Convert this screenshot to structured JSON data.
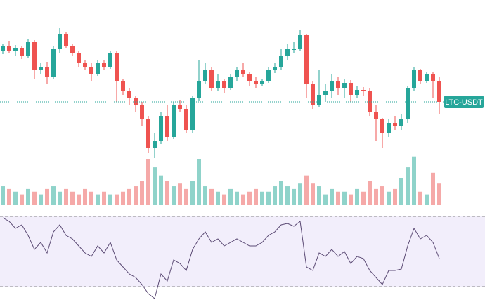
{
  "chart_data": {
    "type": "candlestick",
    "label": "LTC-USDT",
    "up_color": "#26a69a",
    "down_color": "#ef5350",
    "volume_up_color": "#8fd3ca",
    "volume_down_color": "#f5a9a8",
    "rsi_color": "#5b4a74",
    "rsi_band_color": "#f2eefb",
    "ylim": [
      0,
      220
    ],
    "volume_ylim": [
      0,
      100
    ],
    "rsi_ylim": [
      20,
      80
    ],
    "rsi_levels": [
      30,
      70
    ],
    "open": [
      168,
      175,
      168,
      172,
      160,
      180,
      140,
      145,
      130,
      170,
      192,
      175,
      165,
      150,
      145,
      135,
      150,
      145,
      165,
      125,
      110,
      100,
      90,
      70,
      30,
      40,
      75,
      45,
      90,
      85,
      55,
      100,
      125,
      140,
      115,
      125,
      115,
      130,
      140,
      135,
      125,
      120,
      125,
      140,
      145,
      160,
      170,
      170,
      190,
      120,
      90,
      105,
      110,
      125,
      115,
      122,
      105,
      112,
      110,
      80,
      70,
      50,
      65,
      60,
      70,
      115,
      140,
      125,
      135,
      125
    ],
    "high": [
      178,
      182,
      176,
      175,
      185,
      183,
      150,
      152,
      175,
      200,
      194,
      178,
      168,
      155,
      150,
      155,
      154,
      168,
      168,
      128,
      115,
      104,
      95,
      75,
      50,
      80,
      90,
      95,
      98,
      90,
      104,
      155,
      150,
      145,
      135,
      128,
      135,
      145,
      150,
      138,
      130,
      128,
      145,
      150,
      170,
      178,
      180,
      198,
      192,
      125,
      140,
      120,
      135,
      130,
      128,
      126,
      118,
      116,
      115,
      90,
      72,
      70,
      75,
      78,
      118,
      145,
      142,
      138,
      138,
      130
    ],
    "low": [
      163,
      165,
      160,
      156,
      158,
      128,
      135,
      120,
      128,
      165,
      172,
      160,
      145,
      140,
      125,
      132,
      140,
      142,
      95,
      105,
      90,
      80,
      60,
      22,
      15,
      35,
      40,
      42,
      80,
      50,
      50,
      96,
      120,
      110,
      110,
      108,
      112,
      125,
      130,
      118,
      115,
      118,
      122,
      136,
      140,
      155,
      165,
      168,
      100,
      85,
      88,
      95,
      100,
      105,
      100,
      95,
      100,
      104,
      75,
      40,
      30,
      45,
      55,
      55,
      65,
      110,
      120,
      122,
      100,
      78
    ],
    "close": [
      175,
      168,
      172,
      160,
      180,
      140,
      145,
      130,
      170,
      192,
      175,
      165,
      150,
      145,
      135,
      150,
      145,
      165,
      125,
      110,
      100,
      90,
      70,
      30,
      40,
      75,
      45,
      90,
      85,
      55,
      100,
      125,
      140,
      115,
      125,
      115,
      130,
      140,
      135,
      125,
      120,
      125,
      140,
      145,
      160,
      170,
      170,
      190,
      120,
      90,
      105,
      110,
      125,
      115,
      122,
      105,
      112,
      110,
      80,
      70,
      50,
      65,
      60,
      70,
      115,
      140,
      125,
      135,
      125,
      95
    ],
    "volume": [
      35,
      30,
      25,
      20,
      30,
      25,
      20,
      30,
      35,
      25,
      30,
      25,
      20,
      30,
      25,
      20,
      25,
      20,
      20,
      25,
      30,
      35,
      45,
      85,
      70,
      55,
      45,
      35,
      40,
      30,
      45,
      85,
      35,
      30,
      25,
      20,
      30,
      25,
      20,
      25,
      30,
      25,
      25,
      35,
      45,
      35,
      30,
      40,
      55,
      40,
      35,
      20,
      30,
      25,
      25,
      20,
      30,
      25,
      45,
      30,
      35,
      25,
      30,
      50,
      70,
      90,
      25,
      20,
      60,
      40
    ],
    "rsi": [
      69.2,
      67.2,
      63.2,
      65.2,
      59.2,
      51.2,
      55.2,
      49.2,
      61.2,
      65.2,
      59.2,
      57.2,
      53.2,
      49.2,
      47.2,
      53.2,
      49.2,
      55.2,
      45.2,
      41.2,
      37.2,
      35.2,
      31.2,
      26,
      23.2,
      37.2,
      33.2,
      45.2,
      43.2,
      39.2,
      51.2,
      57.2,
      61.2,
      55.2,
      57.2,
      53.2,
      55.2,
      57.2,
      55.2,
      53.2,
      53.2,
      55.2,
      59.2,
      61.2,
      65.2,
      66,
      64.4,
      67.2,
      41.2,
      39.2,
      49.2,
      47.2,
      51.2,
      47.2,
      50,
      43.2,
      47.2,
      46,
      39.2,
      35.2,
      31.2,
      39.2,
      39.2,
      40,
      53.2,
      63.2,
      57.2,
      59.2,
      55.2,
      46
    ]
  }
}
